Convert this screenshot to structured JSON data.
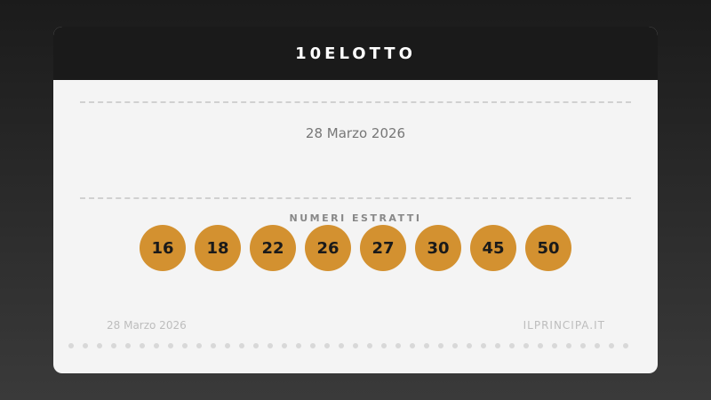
{
  "header": {
    "title": "10ELOTTO"
  },
  "draw_date": "28 Marzo 2026",
  "numbers_label": "NUMERI ESTRATTI",
  "numbers": [
    "16",
    "18",
    "22",
    "26",
    "27",
    "30",
    "45",
    "50"
  ],
  "footer": {
    "date": "28 Marzo 2026",
    "site": "ILPRINCIPA.IT"
  },
  "colors": {
    "ball": "#d39130",
    "header": "#1a1a1a",
    "card": "#f4f4f4"
  }
}
